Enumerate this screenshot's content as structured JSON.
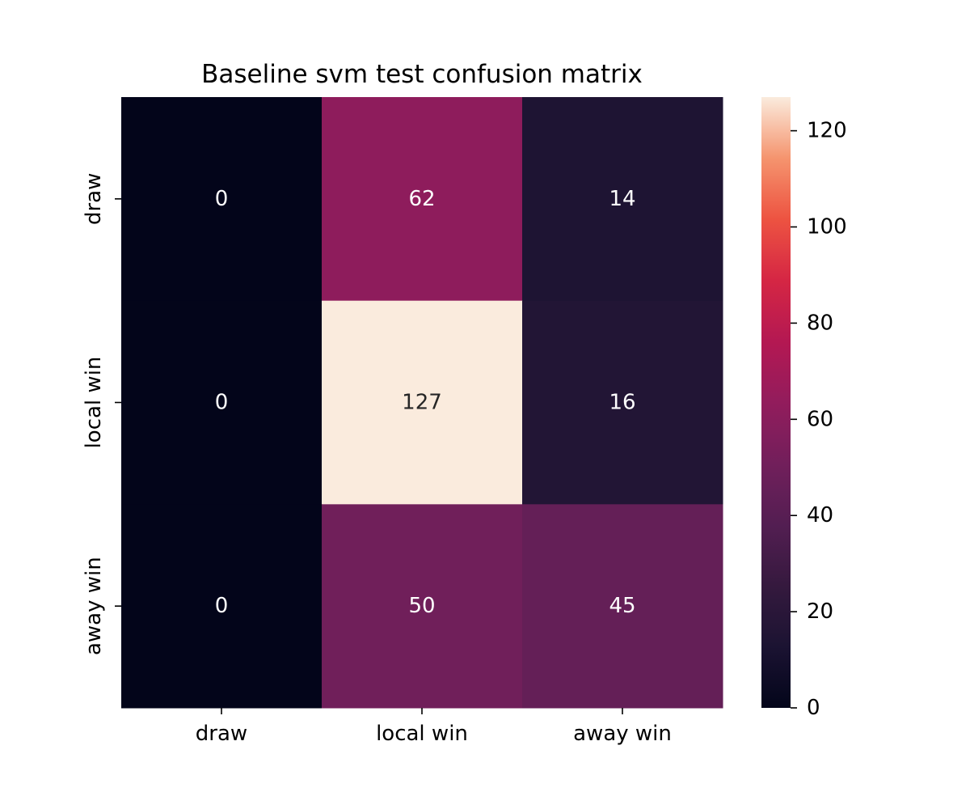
{
  "chart_data": {
    "type": "heatmap",
    "title": "Baseline svm test confusion matrix",
    "xlabel": "",
    "ylabel": "",
    "x_categories": [
      "draw",
      "local win",
      "away win"
    ],
    "y_categories": [
      "draw",
      "local win",
      "away win"
    ],
    "values": [
      [
        0,
        62,
        14
      ],
      [
        0,
        127,
        16
      ],
      [
        0,
        50,
        45
      ]
    ],
    "annotations": true,
    "colormap": "rocket",
    "colorbar": {
      "vmin": 0,
      "vmax": 127,
      "ticks": [
        0,
        20,
        40,
        60,
        80,
        100,
        120
      ],
      "tick_labels": [
        "0",
        "20",
        "40",
        "60",
        "80",
        "100",
        "120"
      ]
    },
    "colors": {
      "low": "#03051a",
      "high": "#faebdd",
      "annotation_light": "#ffffff",
      "annotation_dark": "#262626"
    }
  }
}
